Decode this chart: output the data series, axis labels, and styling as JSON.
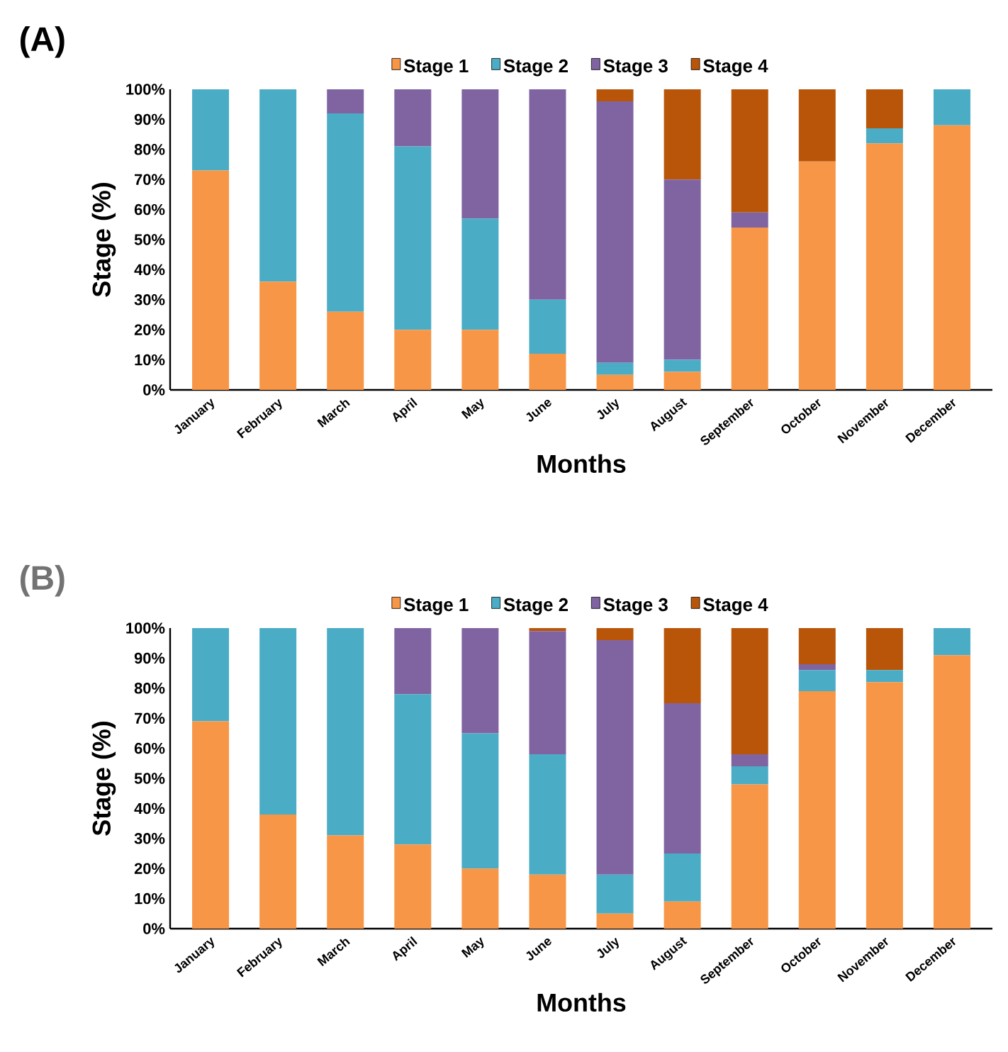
{
  "chart_data": [
    {
      "type": "bar",
      "title": "(A)",
      "stacked": true,
      "xlabel": "Months",
      "ylabel": "Stage (%)",
      "legend": "top",
      "categories": [
        "January",
        "February",
        "March",
        "April",
        "May",
        "June",
        "July",
        "August",
        "September",
        "October",
        "November",
        "December"
      ],
      "ylim": [
        0,
        100
      ],
      "yticks": [
        {
          "value": 0,
          "label": "0%"
        },
        {
          "value": 10,
          "label": "10%"
        },
        {
          "value": 20,
          "label": "20%"
        },
        {
          "value": 30,
          "label": "30%"
        },
        {
          "value": 40,
          "label": "40%"
        },
        {
          "value": 50,
          "label": "50%"
        },
        {
          "value": 60,
          "label": "60%"
        },
        {
          "value": 70,
          "label": "70%"
        },
        {
          "value": 80,
          "label": "80%"
        },
        {
          "value": 90,
          "label": "90%"
        },
        {
          "value": 100,
          "label": "100%"
        }
      ],
      "series": [
        {
          "name": "Stage 1",
          "color": "#f79646",
          "values": [
            73,
            36,
            26,
            20,
            20,
            12,
            5,
            6,
            54,
            76,
            82,
            88
          ]
        },
        {
          "name": "Stage 2",
          "color": "#4bacc6",
          "values": [
            27,
            64,
            66,
            61,
            37,
            18,
            4,
            4,
            0,
            0,
            5,
            12
          ]
        },
        {
          "name": "Stage 3",
          "color": "#8064a2",
          "values": [
            0,
            0,
            8,
            19,
            43,
            70,
            87,
            60,
            5,
            0,
            0,
            0
          ]
        },
        {
          "name": "Stage 4",
          "color": "#b85509",
          "values": [
            0,
            0,
            0,
            0,
            0,
            0,
            4,
            30,
            41,
            24,
            13,
            0
          ]
        }
      ]
    },
    {
      "type": "bar",
      "title": "(B)",
      "stacked": true,
      "xlabel": "Months",
      "ylabel": "Stage (%)",
      "legend": "top",
      "categories": [
        "January",
        "February",
        "March",
        "April",
        "May",
        "June",
        "July",
        "August",
        "September",
        "October",
        "November",
        "December"
      ],
      "ylim": [
        0,
        100
      ],
      "yticks": [
        {
          "value": 0,
          "label": "0%"
        },
        {
          "value": 10,
          "label": "10%"
        },
        {
          "value": 20,
          "label": "20%"
        },
        {
          "value": 30,
          "label": "30%"
        },
        {
          "value": 40,
          "label": "40%"
        },
        {
          "value": 50,
          "label": "50%"
        },
        {
          "value": 60,
          "label": "60%"
        },
        {
          "value": 70,
          "label": "70%"
        },
        {
          "value": 80,
          "label": "80%"
        },
        {
          "value": 90,
          "label": "90%"
        },
        {
          "value": 100,
          "label": "100%"
        }
      ],
      "series": [
        {
          "name": "Stage 1",
          "color": "#f79646",
          "values": [
            69,
            38,
            31,
            28,
            20,
            18,
            5,
            9,
            48,
            79,
            82,
            91
          ]
        },
        {
          "name": "Stage 2",
          "color": "#4bacc6",
          "values": [
            31,
            62,
            69,
            50,
            45,
            40,
            13,
            16,
            6,
            7,
            4,
            9
          ]
        },
        {
          "name": "Stage 3",
          "color": "#8064a2",
          "values": [
            0,
            0,
            0,
            22,
            35,
            41,
            78,
            50,
            4,
            2,
            0,
            0
          ]
        },
        {
          "name": "Stage 4",
          "color": "#b85509",
          "values": [
            0,
            0,
            0,
            0,
            0,
            1,
            4,
            25,
            42,
            12,
            14,
            0
          ]
        }
      ]
    }
  ]
}
